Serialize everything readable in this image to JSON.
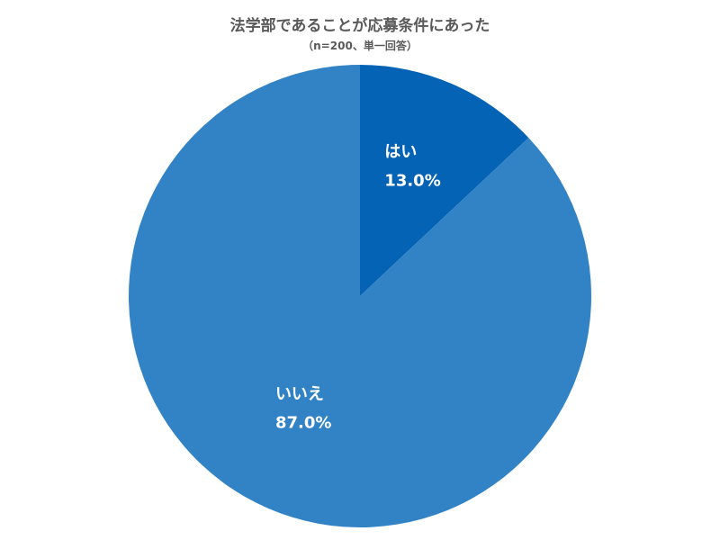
{
  "chart_data": {
    "type": "pie",
    "title": "法学部であることが応募条件にあった",
    "subtitle": "（n=200、単一回答）",
    "slices": [
      {
        "label": "はい",
        "value": 13.0,
        "display": "13.0%",
        "color": "#0563B6"
      },
      {
        "label": "いいえ",
        "value": 87.0,
        "display": "87.0%",
        "color": "#3283C6"
      }
    ],
    "start": "12 o'clock",
    "direction": "clockwise",
    "legend": "none",
    "unit": "%"
  }
}
